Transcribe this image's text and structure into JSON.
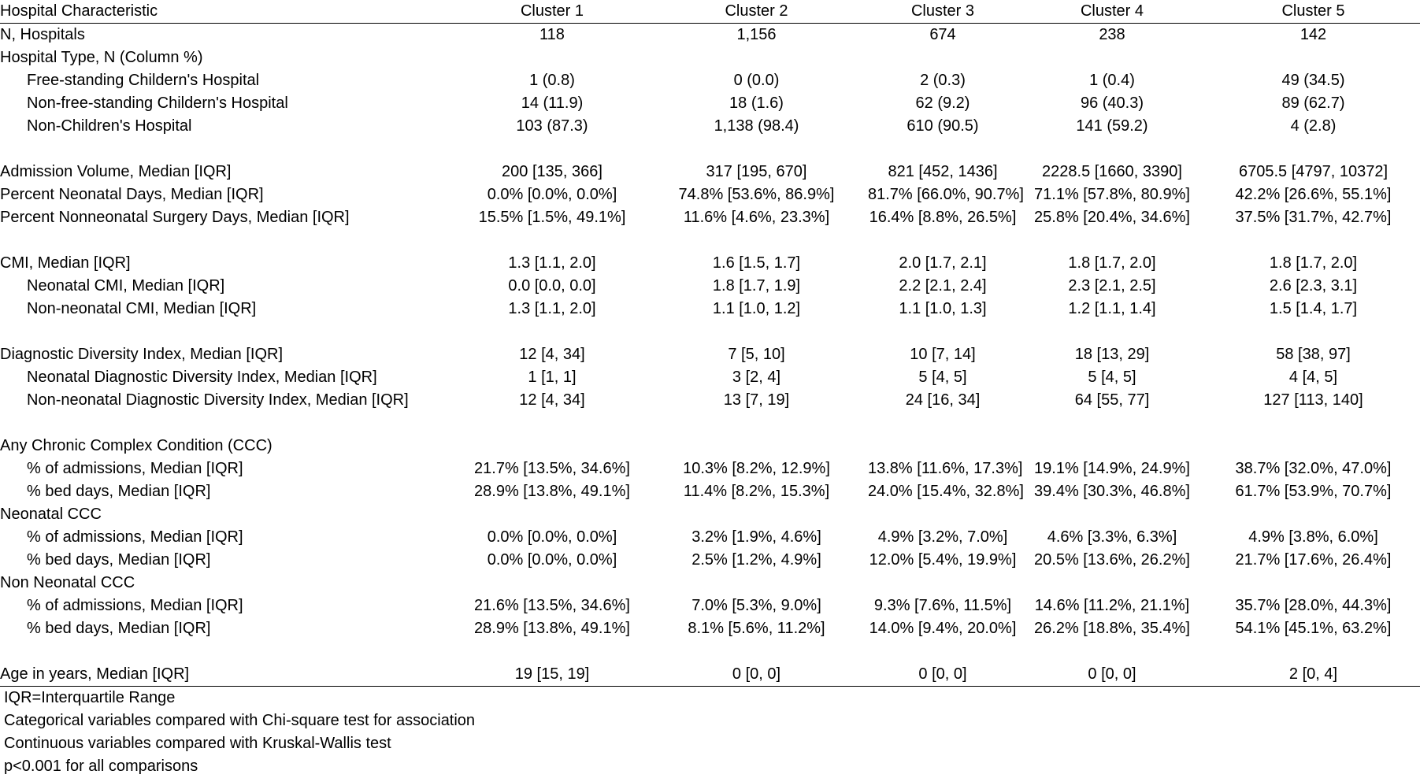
{
  "table": {
    "header": {
      "characteristic": "Hospital Characteristic",
      "clusters": [
        "Cluster 1",
        "Cluster 2",
        "Cluster 3",
        "Cluster 4",
        "Cluster 5"
      ]
    },
    "rows": [
      {
        "label": "N, Hospitals",
        "indent": false,
        "values": [
          "118",
          "1,156",
          "674",
          "238",
          "142"
        ]
      },
      {
        "label": "Hospital Type, N (Column %)",
        "indent": false,
        "values": [
          "",
          "",
          "",
          "",
          ""
        ]
      },
      {
        "label": "Free-standing Childern's Hospital",
        "indent": true,
        "values": [
          "1 (0.8)",
          "0 (0.0)",
          "2 (0.3)",
          "1 (0.4)",
          "49 (34.5)"
        ]
      },
      {
        "label": "Non-free-standing Childern's Hospital",
        "indent": true,
        "values": [
          "14 (11.9)",
          "18 (1.6)",
          "62 (9.2)",
          "96 (40.3)",
          "89 (62.7)"
        ]
      },
      {
        "label": "Non-Children's Hospital",
        "indent": true,
        "values": [
          "103 (87.3)",
          "1,138 (98.4)",
          "610 (90.5)",
          "141 (59.2)",
          "4 (2.8)"
        ]
      },
      {
        "label": "",
        "indent": false,
        "values": [
          "",
          "",
          "",
          "",
          ""
        ]
      },
      {
        "label": "Admission Volume, Median [IQR]",
        "indent": false,
        "values": [
          "200 [135, 366]",
          "317 [195, 670]",
          "821 [452, 1436]",
          "2228.5 [1660, 3390]",
          "6705.5 [4797, 10372]"
        ]
      },
      {
        "label": "Percent Neonatal Days, Median [IQR]",
        "indent": false,
        "values": [
          "0.0% [0.0%, 0.0%]",
          "74.8% [53.6%, 86.9%]",
          "81.7% [66.0%, 90.7%]",
          "71.1% [57.8%, 80.9%]",
          "42.2% [26.6%, 55.1%]"
        ]
      },
      {
        "label": "Percent Nonneonatal Surgery Days, Median [IQR]",
        "indent": false,
        "values": [
          "15.5% [1.5%, 49.1%]",
          "11.6% [4.6%, 23.3%]",
          "16.4% [8.8%, 26.5%]",
          "25.8% [20.4%, 34.6%]",
          "37.5% [31.7%, 42.7%]"
        ]
      },
      {
        "label": "",
        "indent": false,
        "values": [
          "",
          "",
          "",
          "",
          ""
        ]
      },
      {
        "label": "CMI, Median [IQR]",
        "indent": false,
        "values": [
          "1.3 [1.1, 2.0]",
          "1.6 [1.5, 1.7]",
          "2.0 [1.7, 2.1]",
          "1.8 [1.7, 2.0]",
          "1.8 [1.7, 2.0]"
        ]
      },
      {
        "label": "Neonatal CMI, Median [IQR]",
        "indent": true,
        "values": [
          "0.0 [0.0, 0.0]",
          "1.8 [1.7, 1.9]",
          "2.2 [2.1, 2.4]",
          "2.3 [2.1, 2.5]",
          "2.6 [2.3, 3.1]"
        ]
      },
      {
        "label": "Non-neonatal CMI, Median [IQR]",
        "indent": true,
        "values": [
          "1.3 [1.1, 2.0]",
          "1.1 [1.0, 1.2]",
          "1.1 [1.0, 1.3]",
          "1.2 [1.1, 1.4]",
          "1.5 [1.4, 1.7]"
        ]
      },
      {
        "label": "",
        "indent": false,
        "values": [
          "",
          "",
          "",
          "",
          ""
        ]
      },
      {
        "label": "Diagnostic Diversity Index, Median [IQR]",
        "indent": false,
        "values": [
          "12 [4, 34]",
          "7 [5, 10]",
          "10 [7, 14]",
          "18 [13, 29]",
          "58 [38, 97]"
        ]
      },
      {
        "label": "Neonatal Diagnostic Diversity Index, Median [IQR]",
        "indent": true,
        "values": [
          "1 [1, 1]",
          "3 [2, 4]",
          "5 [4, 5]",
          "5 [4, 5]",
          "4 [4, 5]"
        ]
      },
      {
        "label": "Non-neonatal Diagnostic Diversity Index, Median [IQR]",
        "indent": true,
        "values": [
          "12 [4, 34]",
          "13 [7, 19]",
          "24 [16, 34]",
          "64 [55, 77]",
          "127 [113, 140]"
        ]
      },
      {
        "label": "",
        "indent": false,
        "values": [
          "",
          "",
          "",
          "",
          ""
        ]
      },
      {
        "label": "Any Chronic Complex Condition (CCC)",
        "indent": false,
        "values": [
          "",
          "",
          "",
          "",
          ""
        ]
      },
      {
        "label": "% of admissions, Median [IQR]",
        "indent": true,
        "values": [
          "21.7% [13.5%, 34.6%]",
          "10.3% [8.2%, 12.9%]",
          "13.8% [11.6%, 17.3%]",
          "19.1% [14.9%, 24.9%]",
          "38.7% [32.0%, 47.0%]"
        ]
      },
      {
        "label": "% bed days, Median [IQR]",
        "indent": true,
        "values": [
          "28.9% [13.8%, 49.1%]",
          "11.4% [8.2%, 15.3%]",
          "24.0% [15.4%, 32.8%]",
          "39.4% [30.3%, 46.8%]",
          "61.7% [53.9%, 70.7%]"
        ]
      },
      {
        "label": "Neonatal CCC",
        "indent": false,
        "values": [
          "",
          "",
          "",
          "",
          ""
        ]
      },
      {
        "label": "% of admissions, Median [IQR]",
        "indent": true,
        "values": [
          "0.0% [0.0%, 0.0%]",
          "3.2% [1.9%, 4.6%]",
          "4.9% [3.2%, 7.0%]",
          "4.6% [3.3%, 6.3%]",
          "4.9% [3.8%, 6.0%]"
        ]
      },
      {
        "label": "% bed days, Median [IQR]",
        "indent": true,
        "values": [
          "0.0% [0.0%, 0.0%]",
          "2.5% [1.2%, 4.9%]",
          "12.0% [5.4%, 19.9%]",
          "20.5% [13.6%, 26.2%]",
          "21.7% [17.6%, 26.4%]"
        ]
      },
      {
        "label": "Non Neonatal CCC",
        "indent": false,
        "values": [
          "",
          "",
          "",
          "",
          ""
        ]
      },
      {
        "label": "% of admissions, Median [IQR]",
        "indent": true,
        "values": [
          "21.6% [13.5%, 34.6%]",
          "7.0% [5.3%, 9.0%]",
          "9.3% [7.6%, 11.5%]",
          "14.6% [11.2%, 21.1%]",
          "35.7% [28.0%, 44.3%]"
        ]
      },
      {
        "label": "% bed days, Median [IQR]",
        "indent": true,
        "values": [
          "28.9% [13.8%, 49.1%]",
          "8.1% [5.6%, 11.2%]",
          "14.0% [9.4%, 20.0%]",
          "26.2% [18.8%, 35.4%]",
          "54.1% [45.1%, 63.2%]"
        ]
      },
      {
        "label": "",
        "indent": false,
        "values": [
          "",
          "",
          "",
          "",
          ""
        ]
      },
      {
        "label": "Age in years, Median [IQR]",
        "indent": false,
        "values": [
          "19 [15, 19]",
          "0 [0, 0]",
          "0 [0, 0]",
          "0 [0, 0]",
          "2 [0, 4]"
        ]
      }
    ]
  },
  "footnotes": [
    "IQR=Interquartile Range",
    "Categorical variables compared with Chi-square test for association",
    "Continuous variables compared with Kruskal-Wallis test",
    "p<0.001 for all comparisons"
  ]
}
